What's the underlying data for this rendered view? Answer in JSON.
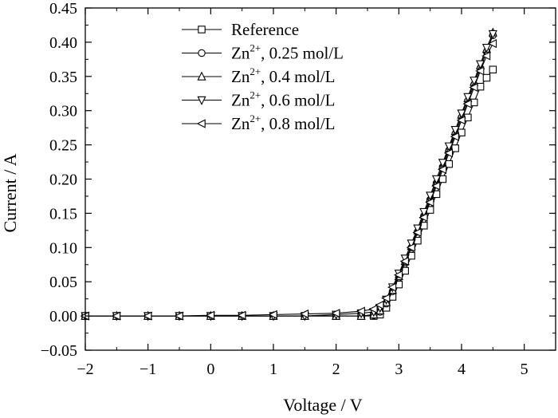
{
  "chart_data": {
    "type": "line",
    "title": "",
    "xlabel": "Voltage / V",
    "ylabel": "Current / A",
    "xlim": [
      -2,
      5.5
    ],
    "ylim": [
      -0.05,
      0.45
    ],
    "xticks": [
      -2,
      -1,
      0,
      1,
      2,
      3,
      4,
      5
    ],
    "xtick_labels": [
      "−2",
      "−1",
      "0",
      "1",
      "2",
      "3",
      "4",
      "5"
    ],
    "yticks": [
      -0.05,
      0.0,
      0.05,
      0.1,
      0.15,
      0.2,
      0.25,
      0.3,
      0.35,
      0.4,
      0.45
    ],
    "ytick_labels": [
      "−0.05",
      "0.00",
      "0.05",
      "0.10",
      "0.15",
      "0.20",
      "0.25",
      "0.30",
      "0.35",
      "0.40",
      "0.45"
    ],
    "grid": false,
    "legend_position": "top-center",
    "series": [
      {
        "name": "Reference",
        "legend_main": "Reference",
        "legend_sup": "",
        "legend_rest": "",
        "marker": "square",
        "points": [
          [
            -2.0,
            0.0
          ],
          [
            -1.5,
            0.0
          ],
          [
            -1.0,
            0.0
          ],
          [
            -0.5,
            0.0
          ],
          [
            0.0,
            0.0
          ],
          [
            0.5,
            0.0
          ],
          [
            1.0,
            0.0
          ],
          [
            1.5,
            0.0
          ],
          [
            2.0,
            0.0
          ],
          [
            2.4,
            0.0
          ],
          [
            2.6,
            0.0
          ],
          [
            2.7,
            0.002
          ],
          [
            2.8,
            0.012
          ],
          [
            2.9,
            0.028
          ],
          [
            3.0,
            0.046
          ],
          [
            3.1,
            0.066
          ],
          [
            3.2,
            0.088
          ],
          [
            3.3,
            0.11
          ],
          [
            3.4,
            0.132
          ],
          [
            3.5,
            0.155
          ],
          [
            3.6,
            0.178
          ],
          [
            3.7,
            0.2
          ],
          [
            3.8,
            0.222
          ],
          [
            3.9,
            0.245
          ],
          [
            4.0,
            0.268
          ],
          [
            4.1,
            0.29
          ],
          [
            4.2,
            0.312
          ],
          [
            4.3,
            0.335
          ],
          [
            4.4,
            0.348
          ],
          [
            4.5,
            0.36
          ]
        ]
      },
      {
        "name": "Zn2+, 0.25 mol/L",
        "legend_main": "Zn",
        "legend_sup": "2+",
        "legend_rest": ", 0.25 mol/L",
        "marker": "circle",
        "points": [
          [
            -2.0,
            0.0
          ],
          [
            -1.5,
            0.0
          ],
          [
            -1.0,
            0.0
          ],
          [
            -0.5,
            0.0
          ],
          [
            0.0,
            0.0
          ],
          [
            0.5,
            0.0
          ],
          [
            1.0,
            0.0
          ],
          [
            1.5,
            0.0
          ],
          [
            2.0,
            0.0
          ],
          [
            2.4,
            0.0
          ],
          [
            2.6,
            0.001
          ],
          [
            2.7,
            0.006
          ],
          [
            2.8,
            0.018
          ],
          [
            2.9,
            0.036
          ],
          [
            3.0,
            0.056
          ],
          [
            3.1,
            0.078
          ],
          [
            3.2,
            0.1
          ],
          [
            3.3,
            0.123
          ],
          [
            3.4,
            0.146
          ],
          [
            3.5,
            0.17
          ],
          [
            3.6,
            0.194
          ],
          [
            3.7,
            0.218
          ],
          [
            3.8,
            0.242
          ],
          [
            3.9,
            0.266
          ],
          [
            4.0,
            0.29
          ],
          [
            4.1,
            0.314
          ],
          [
            4.2,
            0.338
          ],
          [
            4.3,
            0.362
          ],
          [
            4.4,
            0.386
          ],
          [
            4.5,
            0.41
          ]
        ]
      },
      {
        "name": "Zn2+, 0.4 mol/L",
        "legend_main": "Zn",
        "legend_sup": "2+",
        "legend_rest": ", 0.4 mol/L",
        "marker": "triangle-up",
        "points": [
          [
            -2.0,
            0.0
          ],
          [
            -1.5,
            0.0
          ],
          [
            -1.0,
            0.0
          ],
          [
            -0.5,
            0.0
          ],
          [
            0.0,
            0.0
          ],
          [
            0.5,
            0.0
          ],
          [
            1.0,
            0.0
          ],
          [
            1.5,
            0.0
          ],
          [
            2.0,
            0.0
          ],
          [
            2.4,
            0.0
          ],
          [
            2.6,
            0.002
          ],
          [
            2.7,
            0.008
          ],
          [
            2.8,
            0.02
          ],
          [
            2.9,
            0.038
          ],
          [
            3.0,
            0.058
          ],
          [
            3.1,
            0.08
          ],
          [
            3.2,
            0.102
          ],
          [
            3.3,
            0.125
          ],
          [
            3.4,
            0.148
          ],
          [
            3.5,
            0.172
          ],
          [
            3.6,
            0.196
          ],
          [
            3.7,
            0.22
          ],
          [
            3.8,
            0.245
          ],
          [
            3.9,
            0.27
          ],
          [
            4.0,
            0.294
          ],
          [
            4.1,
            0.318
          ],
          [
            4.2,
            0.342
          ],
          [
            4.3,
            0.366
          ],
          [
            4.4,
            0.39
          ],
          [
            4.5,
            0.414
          ]
        ]
      },
      {
        "name": "Zn2+, 0.6 mol/L",
        "legend_main": "Zn",
        "legend_sup": "2+",
        "legend_rest": ", 0.6 mol/L",
        "marker": "triangle-down",
        "points": [
          [
            -2.0,
            0.0
          ],
          [
            -1.5,
            0.0
          ],
          [
            -1.0,
            0.0
          ],
          [
            -0.5,
            0.0
          ],
          [
            0.0,
            0.0
          ],
          [
            0.5,
            0.0
          ],
          [
            1.0,
            0.0
          ],
          [
            1.5,
            0.0
          ],
          [
            2.0,
            0.002
          ],
          [
            2.4,
            0.004
          ],
          [
            2.6,
            0.006
          ],
          [
            2.7,
            0.012
          ],
          [
            2.8,
            0.024
          ],
          [
            2.9,
            0.042
          ],
          [
            3.0,
            0.062
          ],
          [
            3.1,
            0.084
          ],
          [
            3.2,
            0.106
          ],
          [
            3.3,
            0.128
          ],
          [
            3.4,
            0.152
          ],
          [
            3.5,
            0.176
          ],
          [
            3.6,
            0.2
          ],
          [
            3.7,
            0.224
          ],
          [
            3.8,
            0.248
          ],
          [
            3.9,
            0.272
          ],
          [
            4.0,
            0.296
          ],
          [
            4.1,
            0.32
          ],
          [
            4.2,
            0.344
          ],
          [
            4.3,
            0.368
          ],
          [
            4.4,
            0.392
          ],
          [
            4.5,
            0.412
          ]
        ]
      },
      {
        "name": "Zn2+, 0.8 mol/L",
        "legend_main": "Zn",
        "legend_sup": "2+",
        "legend_rest": ", 0.8 mol/L",
        "marker": "triangle-left",
        "points": [
          [
            -2.0,
            0.0
          ],
          [
            -1.5,
            0.0
          ],
          [
            -1.0,
            0.0
          ],
          [
            -0.5,
            0.0
          ],
          [
            0.0,
            0.001
          ],
          [
            0.5,
            0.001
          ],
          [
            1.0,
            0.002
          ],
          [
            1.5,
            0.003
          ],
          [
            2.0,
            0.004
          ],
          [
            2.4,
            0.007
          ],
          [
            2.6,
            0.01
          ],
          [
            2.7,
            0.016
          ],
          [
            2.8,
            0.026
          ],
          [
            2.9,
            0.042
          ],
          [
            3.0,
            0.06
          ],
          [
            3.1,
            0.08
          ],
          [
            3.2,
            0.1
          ],
          [
            3.3,
            0.122
          ],
          [
            3.4,
            0.144
          ],
          [
            3.5,
            0.166
          ],
          [
            3.6,
            0.19
          ],
          [
            3.7,
            0.214
          ],
          [
            3.8,
            0.238
          ],
          [
            3.9,
            0.262
          ],
          [
            4.0,
            0.286
          ],
          [
            4.1,
            0.31
          ],
          [
            4.2,
            0.334
          ],
          [
            4.3,
            0.358
          ],
          [
            4.4,
            0.38
          ],
          [
            4.5,
            0.398
          ]
        ]
      }
    ]
  }
}
